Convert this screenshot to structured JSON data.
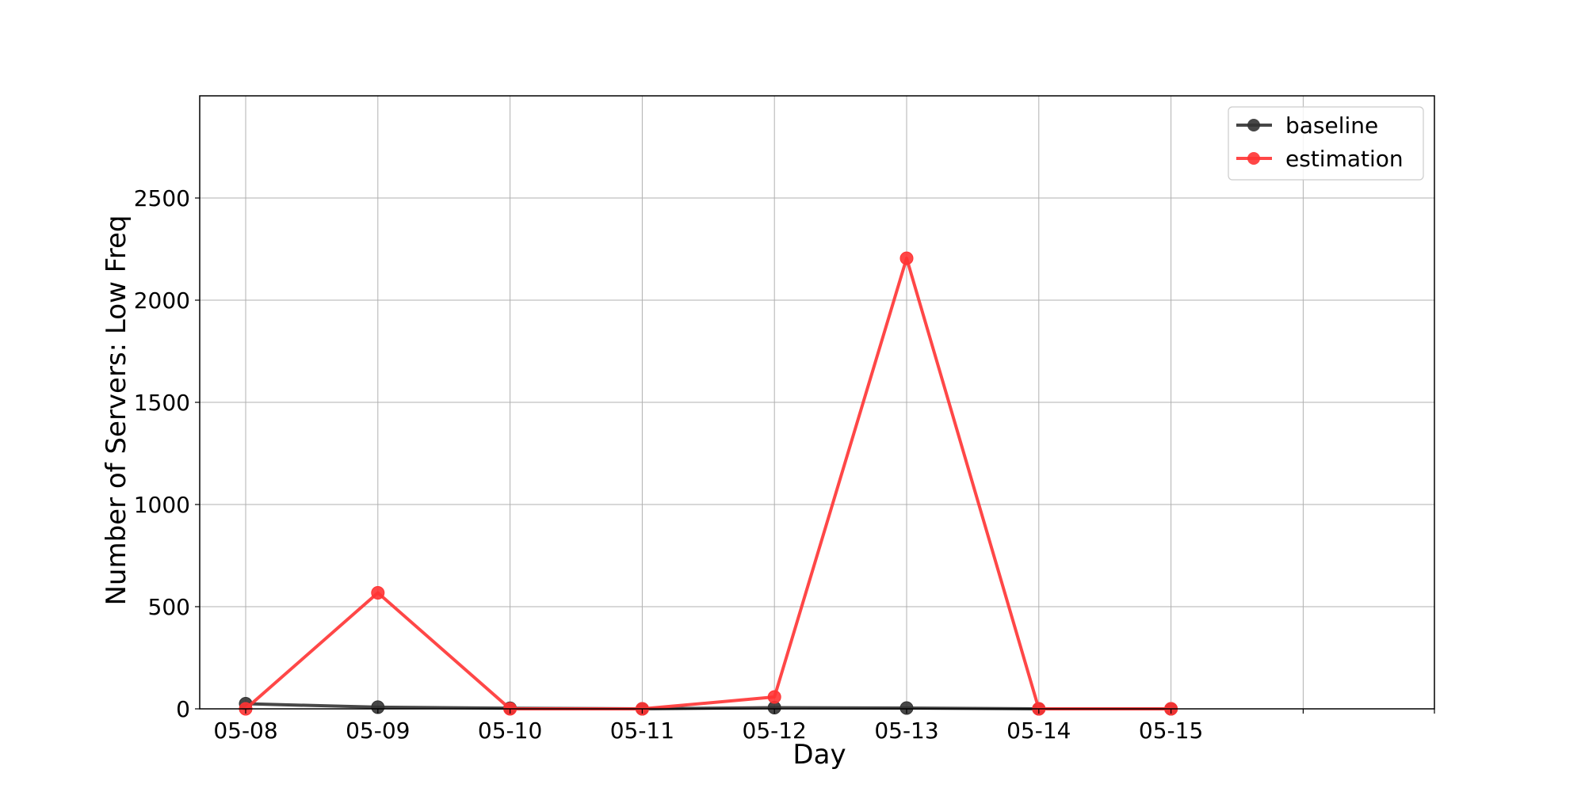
{
  "chart_data": {
    "type": "line",
    "title": "",
    "xlabel": "Day",
    "ylabel": "Number of Servers: Low Freq",
    "categories": [
      "05-08",
      "05-09",
      "05-10",
      "05-11",
      "05-12",
      "05-13",
      "05-14",
      "05-15"
    ],
    "x_extra_ticks": 2,
    "ylim": [
      0,
      3000
    ],
    "yticks": [
      0,
      500,
      1000,
      1500,
      2000,
      2500
    ],
    "grid": true,
    "legend_position": "top-right",
    "series": [
      {
        "name": "baseline",
        "color": "#333333",
        "values": [
          25,
          8,
          3,
          0,
          6,
          4,
          0,
          0
        ]
      },
      {
        "name": "estimation",
        "color": "#ff3333",
        "values": [
          0,
          568,
          0,
          0,
          58,
          2205,
          0,
          0
        ]
      }
    ]
  }
}
